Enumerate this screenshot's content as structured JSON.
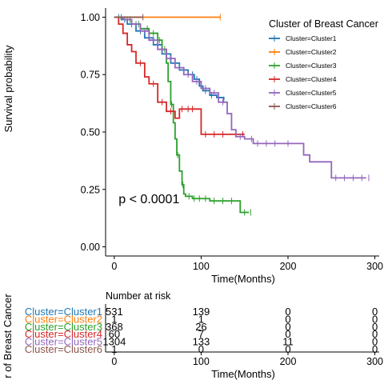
{
  "chart_data": [
    {
      "type": "line",
      "subtype": "kaplan-meier",
      "xlabel": "Time(Months)",
      "ylabel": "Survival probability",
      "xlim": [
        -10,
        305
      ],
      "ylim": [
        -0.04,
        1.04
      ],
      "x_ticks": [
        0,
        100,
        200,
        300
      ],
      "x_tick_labels": [
        "0",
        "100",
        "200",
        "300"
      ],
      "y_ticks": [
        0.0,
        0.25,
        0.5,
        0.75,
        1.0
      ],
      "y_tick_labels": [
        "0.00",
        "0.25",
        "0.50",
        "0.75",
        "1.00"
      ],
      "grid": false,
      "annotation": "p < 0.0001",
      "annotation_at": [
        5,
        0.19
      ],
      "legend": {
        "title": "Cluster of Breast Cancer",
        "placement": "top-right",
        "items": [
          "Cluster=Cluster1",
          "Cluster=Cluster2",
          "Cluster=Cluster3",
          "Cluster=Cluster4",
          "Cluster=Cluster5",
          "Cluster=Cluster6"
        ]
      },
      "series": [
        {
          "name": "Cluster=Cluster1",
          "color": "#1f77b4",
          "x": [
            0,
            8,
            15,
            25,
            35,
            45,
            55,
            65,
            75,
            85,
            92,
            98,
            102,
            110,
            118,
            126
          ],
          "y": [
            1.0,
            0.99,
            0.97,
            0.94,
            0.91,
            0.88,
            0.84,
            0.8,
            0.77,
            0.75,
            0.73,
            0.7,
            0.68,
            0.66,
            0.65,
            0.64
          ],
          "censor_x": [
            5,
            12,
            20,
            30,
            40,
            50,
            60,
            70,
            80,
            90,
            95,
            105,
            112,
            120,
            126
          ]
        },
        {
          "name": "Cluster=Cluster2",
          "color": "#ff7f0e",
          "x": [
            0,
            122
          ],
          "y": [
            1.0,
            1.0
          ],
          "censor_x": [
            122
          ]
        },
        {
          "name": "Cluster=Cluster3",
          "color": "#2ca02c",
          "x": [
            0,
            10,
            20,
            30,
            40,
            50,
            55,
            60,
            62,
            65,
            68,
            70,
            72,
            75,
            78,
            80,
            82,
            85,
            90,
            100,
            110,
            145,
            155
          ],
          "y": [
            1.0,
            0.99,
            0.97,
            0.95,
            0.93,
            0.9,
            0.86,
            0.8,
            0.72,
            0.62,
            0.54,
            0.47,
            0.4,
            0.33,
            0.27,
            0.23,
            0.22,
            0.22,
            0.21,
            0.21,
            0.2,
            0.15,
            0.15
          ],
          "censor_x": [
            8,
            18,
            28,
            38,
            45,
            52,
            58,
            66,
            73,
            79,
            86,
            92,
            98,
            105,
            115,
            125,
            135,
            150,
            157
          ]
        },
        {
          "name": "Cluster=Cluster4",
          "color": "#d62728",
          "x": [
            0,
            5,
            10,
            15,
            20,
            25,
            35,
            40,
            50,
            60,
            70,
            75,
            80,
            95,
            100,
            130,
            150
          ],
          "y": [
            1.0,
            0.97,
            0.93,
            0.88,
            0.85,
            0.8,
            0.74,
            0.71,
            0.63,
            0.59,
            0.56,
            0.6,
            0.6,
            0.6,
            0.49,
            0.49,
            0.49
          ],
          "censor_x": [
            30,
            45,
            55,
            65,
            78,
            85,
            90,
            105,
            115,
            125,
            140,
            148
          ]
        },
        {
          "name": "Cluster=Cluster5",
          "color": "#9467bd",
          "x": [
            0,
            10,
            20,
            30,
            40,
            50,
            60,
            70,
            80,
            90,
            100,
            110,
            120,
            130,
            135,
            140,
            150,
            160,
            170,
            190,
            210,
            218,
            225,
            245,
            250,
            285,
            290
          ],
          "y": [
            1.0,
            0.99,
            0.97,
            0.94,
            0.9,
            0.86,
            0.82,
            0.78,
            0.75,
            0.72,
            0.69,
            0.67,
            0.63,
            0.58,
            0.51,
            0.48,
            0.47,
            0.45,
            0.45,
            0.45,
            0.45,
            0.4,
            0.37,
            0.37,
            0.3,
            0.3,
            0.3
          ],
          "censor_x": [
            15,
            25,
            35,
            45,
            55,
            65,
            75,
            85,
            95,
            105,
            115,
            125,
            145,
            158,
            165,
            175,
            185,
            200,
            255,
            265,
            275,
            285,
            293
          ]
        },
        {
          "name": "Cluster=Cluster6",
          "color": "#8c564b",
          "x": [
            0,
            33
          ],
          "y": [
            1.0,
            1.0
          ],
          "censor_x": [
            33
          ]
        }
      ]
    },
    {
      "type": "table",
      "title": "Number at risk",
      "ylabel": "r of Breast Cancer",
      "xlabel": "Time(Months)",
      "xlim": [
        -10,
        305
      ],
      "x_ticks": [
        0,
        100,
        200,
        300
      ],
      "x_tick_labels": [
        "0",
        "100",
        "200",
        "300"
      ],
      "rows": [
        {
          "label": "Cluster=Cluster1",
          "color": "#1f77b4",
          "values": [
            "531",
            "139",
            "0",
            "0"
          ]
        },
        {
          "label": "Cluster=Cluster2",
          "color": "#ff7f0e",
          "values": [
            "1",
            "1",
            "0",
            "0"
          ]
        },
        {
          "label": "Cluster=Cluster3",
          "color": "#2ca02c",
          "values": [
            "368",
            "26",
            "0",
            "0"
          ]
        },
        {
          "label": "Cluster=Cluster4",
          "color": "#d62728",
          "values": [
            "60",
            "7",
            "0",
            "0"
          ]
        },
        {
          "label": "Cluster=Cluster5",
          "color": "#9467bd",
          "values": [
            "1304",
            "133",
            "11",
            "0"
          ]
        },
        {
          "label": "Cluster=Cluster6",
          "color": "#8c564b",
          "values": [
            "1",
            "0",
            "0",
            "0"
          ]
        }
      ]
    }
  ]
}
